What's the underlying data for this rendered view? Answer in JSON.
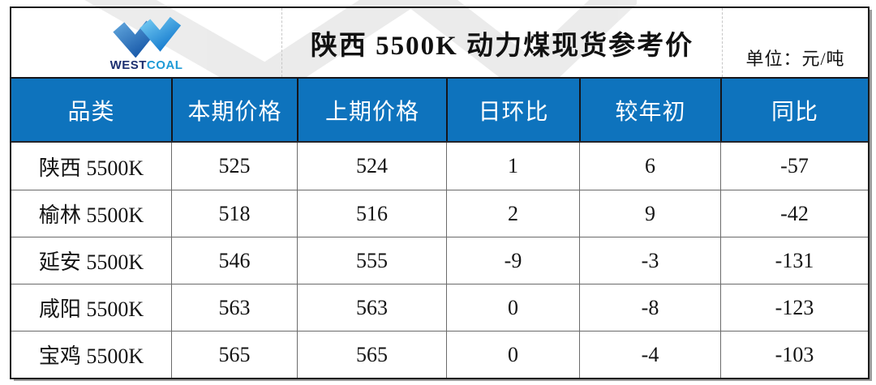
{
  "page": {
    "title": "陕西 5500K 动力煤现货参考价",
    "unit_label": "单位：元/吨"
  },
  "logo": {
    "brand_west": "WEST",
    "brand_coal": "COAL"
  },
  "colors": {
    "header_blue": "#0e73bd",
    "logo_navy": "#1c2f70",
    "logo_light_blue": "#1e9ad6",
    "watermark_gray": "#dcdcdc"
  },
  "chart_data": {
    "type": "table",
    "title": "陕西 5500K 动力煤现货参考价",
    "unit": "元/吨",
    "columns": [
      "品类",
      "本期价格",
      "上期价格",
      "日环比",
      "较年初",
      "同比"
    ],
    "rows": [
      [
        "陕西 5500K",
        "525",
        "524",
        "1",
        "6",
        "-57"
      ],
      [
        "榆林 5500K",
        "518",
        "516",
        "2",
        "9",
        "-42"
      ],
      [
        "延安 5500K",
        "546",
        "555",
        "-9",
        "-3",
        "-131"
      ],
      [
        "咸阳 5500K",
        "563",
        "563",
        "0",
        "-8",
        "-123"
      ],
      [
        "宝鸡 5500K",
        "565",
        "565",
        "0",
        "-4",
        "-103"
      ]
    ]
  }
}
